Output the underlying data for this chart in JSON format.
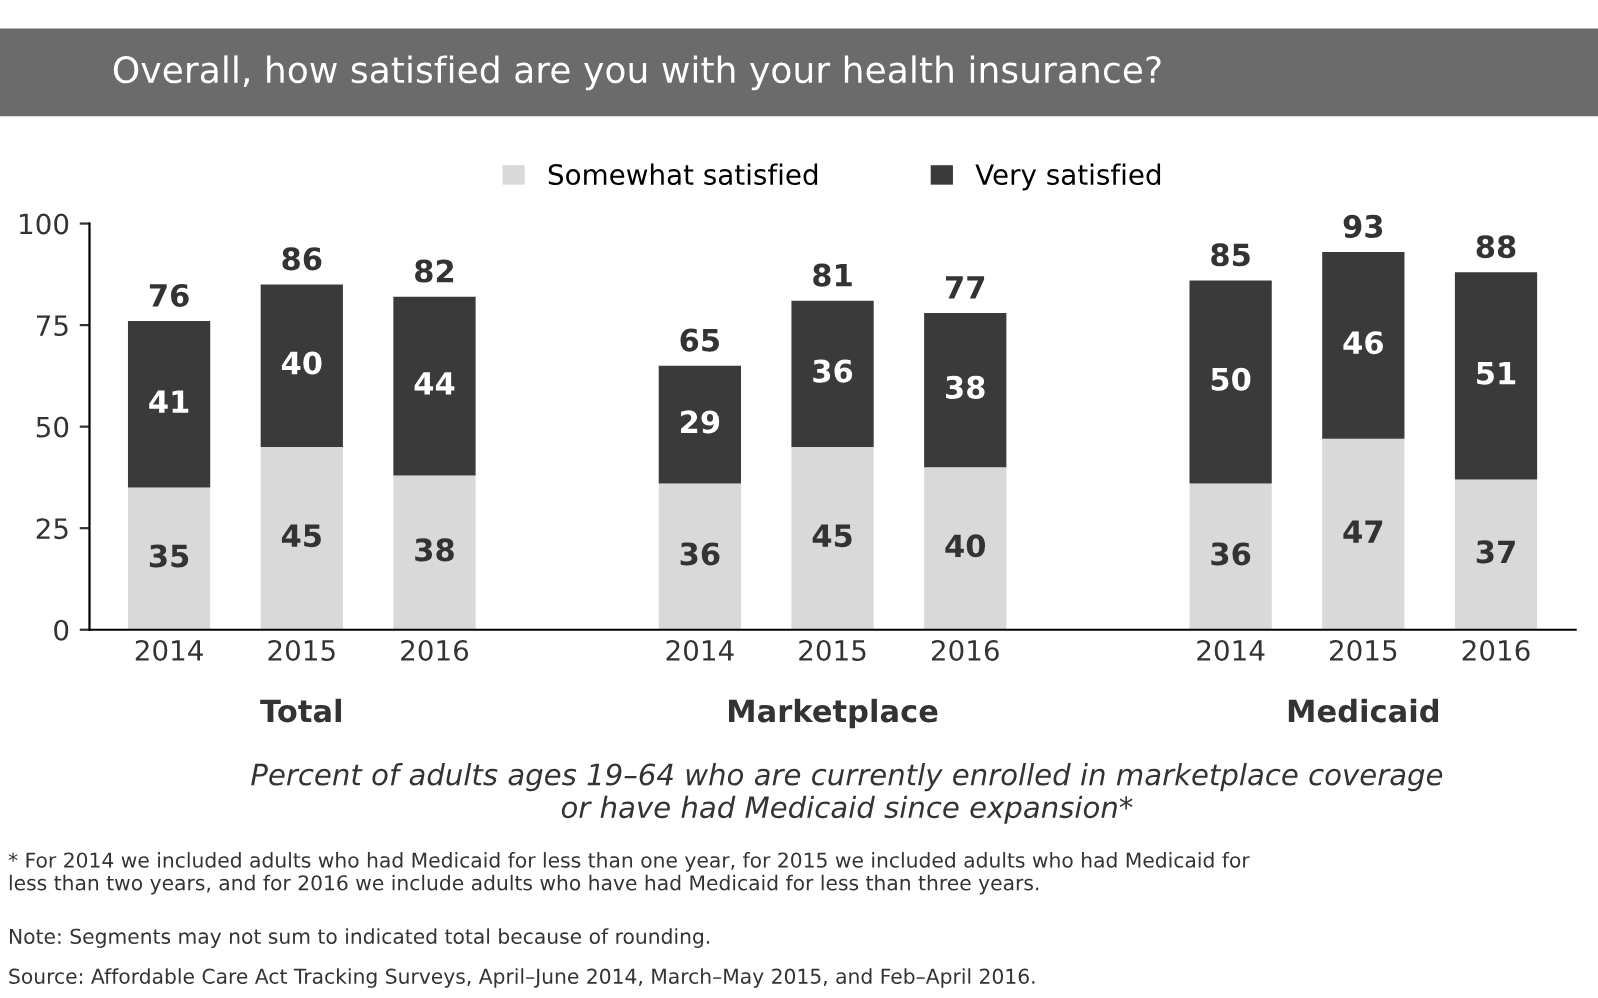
{
  "chart_data": {
    "type": "bar",
    "stacked": true,
    "title": "Overall, how satisfied are you with your health insurance?",
    "categories": [
      "2014",
      "2015",
      "2016",
      null,
      "2014",
      "2015",
      "2016",
      null,
      "2014",
      "2015",
      "2016"
    ],
    "series": [
      {
        "name": "Somewhat satisfied",
        "color": "#d9d9d9",
        "values": [
          35,
          45,
          38,
          null,
          36,
          45,
          40,
          null,
          36,
          47,
          37
        ]
      },
      {
        "name": "Very satisfied",
        "color": "#3a3a3a",
        "values": [
          41,
          40,
          44,
          null,
          29,
          36,
          38,
          null,
          50,
          46,
          51
        ]
      }
    ],
    "totals": [
      "76",
      "86",
      "82",
      null,
      "65",
      "81",
      "77",
      null,
      "85",
      "93",
      "88"
    ],
    "data_labels": true,
    "ylim": [
      0,
      100
    ],
    "yticks": [
      0,
      25,
      50,
      75,
      100
    ],
    "grid": false,
    "legend": "top",
    "annotations": [
      "Total",
      "Marketplace",
      "Medicaid",
      "Percent of adults ages 19–64 who are currently enrolled in marketplace coverage\nor have had Medicaid since expansion*",
      "* For 2014 we included adults who had Medicaid for less than one year, for 2015 we included adults who had Medicaid for\nless than two years, and for 2016 we include adults who have had Medicaid for less than three years.",
      "Note: Segments may not sum to indicated total because of rounding.",
      "Source: Affordable Care Act Tracking Surveys, April–June 2014, March–May 2015, and Feb–April 2016."
    ]
  }
}
